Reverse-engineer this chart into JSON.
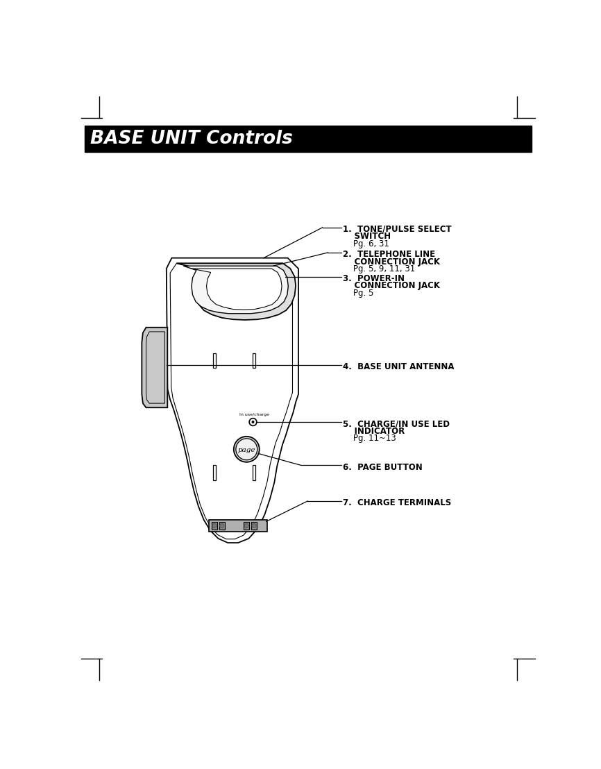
{
  "title": "BASE UNIT Controls",
  "title_bg": "#000000",
  "title_color": "#ffffff",
  "title_fontsize": 19,
  "bg_color": "#ffffff",
  "line_color": "#000000",
  "label1_lines": [
    "TONE/PULSE SELECT",
    "SWITCH",
    "Pg. 6, 31"
  ],
  "label1_bold": [
    true,
    true,
    false
  ],
  "label2_lines": [
    "TELEPHONE LINE",
    "CONNECTION JACK",
    "Pg. 5, 9, 11, 31"
  ],
  "label2_bold": [
    true,
    true,
    false
  ],
  "label3_lines": [
    "POWER-IN",
    "CONNECTION JACK",
    "Pg. 5"
  ],
  "label3_bold": [
    true,
    true,
    false
  ],
  "label4_lines": [
    "BASE UNIT ANTENNA"
  ],
  "label4_bold": [
    true
  ],
  "label5_lines": [
    "CHARGE/IN USE LED",
    "INDICATOR",
    "Pg. 11~13"
  ],
  "label5_bold": [
    true,
    true,
    false
  ],
  "label6_lines": [
    "PAGE BUTTON"
  ],
  "label6_bold": [
    true
  ],
  "label7_lines": [
    "CHARGE TERMINALS"
  ],
  "label7_bold": [
    true
  ]
}
